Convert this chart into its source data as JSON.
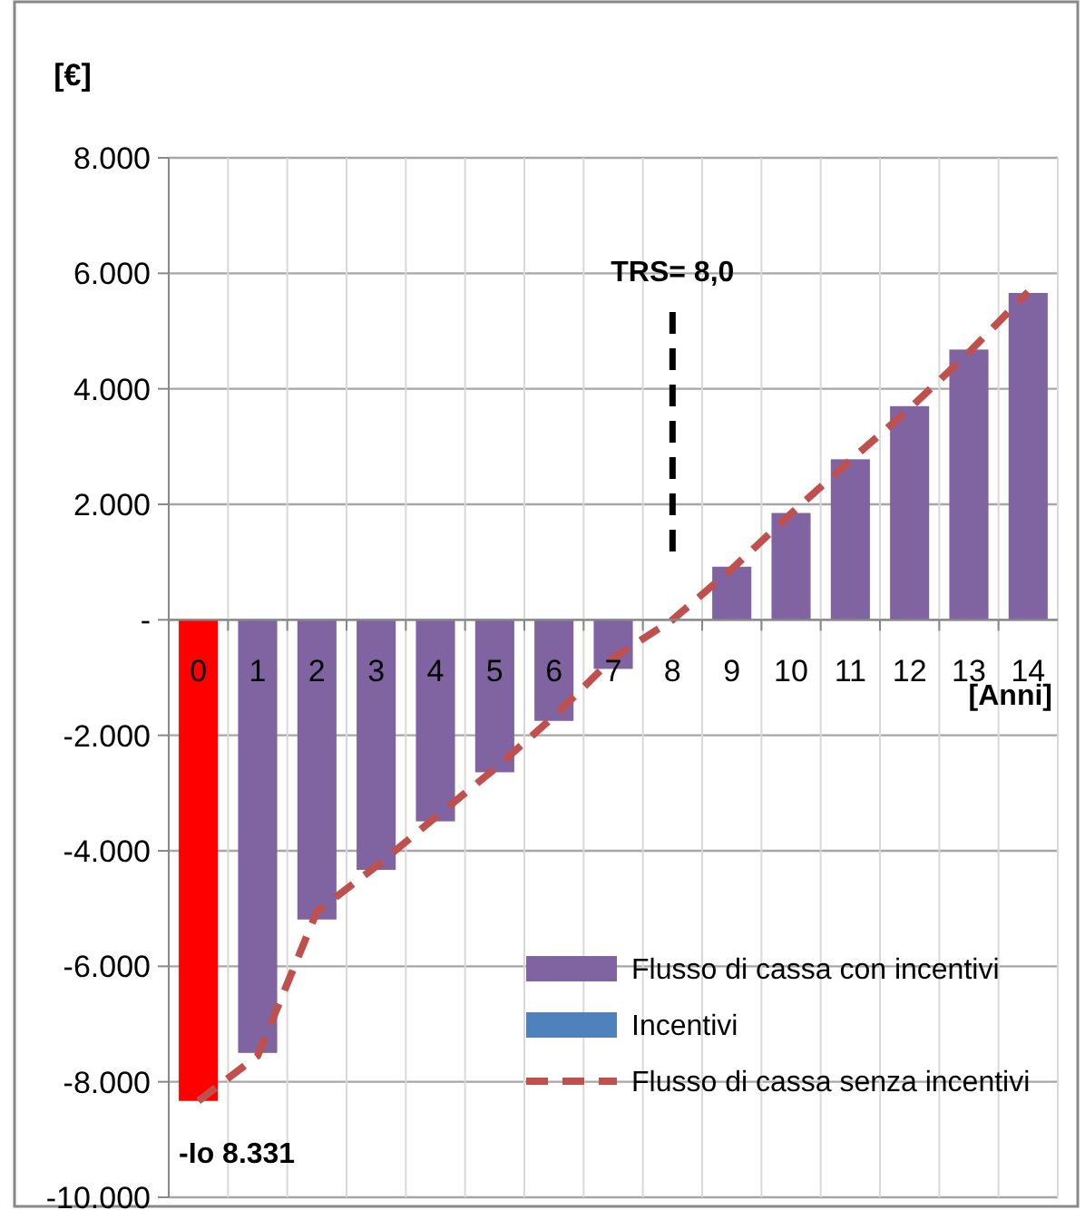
{
  "chart_data": {
    "type": "bar",
    "xlabel": "[Anni]",
    "ylabel": "[€]",
    "x": [
      0,
      1,
      2,
      3,
      4,
      5,
      6,
      7,
      8,
      9,
      10,
      11,
      12,
      13,
      14
    ],
    "xlim": [
      -0.5,
      14.5
    ],
    "xticks": [
      0,
      1,
      2,
      3,
      4,
      5,
      6,
      7,
      8,
      9,
      10,
      11,
      12,
      13,
      14
    ],
    "ylim": [
      -10000,
      8000
    ],
    "yticks": [
      {
        "value": -10000,
        "label": "-10.000"
      },
      {
        "value": -8000,
        "label": "-8.000"
      },
      {
        "value": -6000,
        "label": "-6.000"
      },
      {
        "value": -4000,
        "label": "-4.000"
      },
      {
        "value": -2000,
        "label": "-2.000"
      },
      {
        "value": 0,
        "label": "-"
      },
      {
        "value": 2000,
        "label": "2.000"
      },
      {
        "value": 4000,
        "label": "4.000"
      },
      {
        "value": 6000,
        "label": "6.000"
      },
      {
        "value": 8000,
        "label": "8.000"
      }
    ],
    "series": [
      {
        "name": "Flusso di cassa con incentivi",
        "color": "#8064a2",
        "colors": [
          "#ff0000",
          "#8064a2",
          "#8064a2",
          "#8064a2",
          "#8064a2",
          "#8064a2",
          "#8064a2",
          "#8064a2",
          "#8064a2",
          "#8064a2",
          "#8064a2",
          "#8064a2",
          "#8064a2",
          "#8064a2",
          "#8064a2"
        ],
        "values": [
          -8331,
          -7500,
          -5190,
          -4330,
          -3490,
          -2640,
          -1750,
          -850,
          0,
          920,
          1850,
          2780,
          3700,
          4680,
          5660
        ]
      },
      {
        "name": "Incentivi",
        "color": "#4f81bd",
        "values": [
          null,
          null,
          null,
          null,
          null,
          null,
          null,
          null,
          null,
          null,
          null,
          null,
          null,
          null,
          null
        ]
      },
      {
        "name": "Flusso di cassa senza incentivi",
        "type": "line",
        "line_style": "dashed",
        "color": "#c0504d",
        "values": [
          -8331,
          -7550,
          -5050,
          -4270,
          -3420,
          -2580,
          -1670,
          -660,
          0,
          880,
          1840,
          2760,
          3660,
          4630,
          5680
        ]
      }
    ],
    "ref_lines": [
      {
        "axis": "x",
        "value": 8,
        "label": "TRS= 8,0",
        "color": "#000000",
        "line_style": "dashed"
      }
    ],
    "annotations": [
      {
        "text": "-Io 8.331",
        "x": 0,
        "y": -8331
      }
    ],
    "grid": true,
    "legend": "bottom right"
  }
}
